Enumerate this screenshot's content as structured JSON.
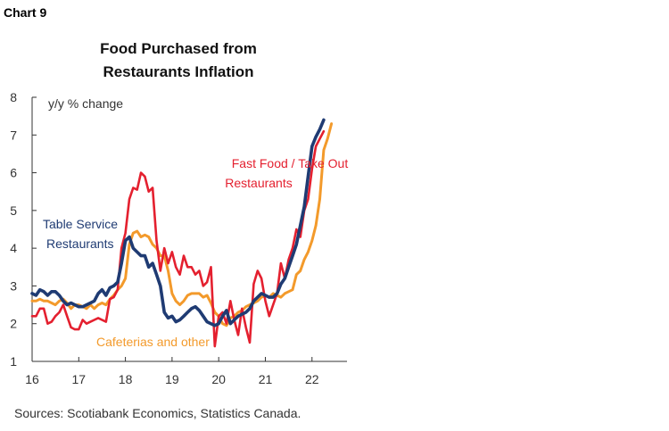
{
  "header": {
    "chart_number": "Chart 9"
  },
  "footer": {
    "source": "Sources: Scotiabank Economics, Statistics Canada."
  },
  "chart_data": {
    "type": "line",
    "title_lines": [
      "Food Purchased from",
      "Restaurants Inflation"
    ],
    "ylabel": "y/y % change",
    "ylim": [
      1,
      8
    ],
    "y_ticks": [
      "1",
      "2",
      "3",
      "4",
      "5",
      "6",
      "7",
      "8"
    ],
    "xlim": [
      2016,
      2022.75
    ],
    "x_ticks": [
      {
        "v": 2016,
        "label": "16"
      },
      {
        "v": 2017,
        "label": "17"
      },
      {
        "v": 2018,
        "label": "18"
      },
      {
        "v": 2019,
        "label": "19"
      },
      {
        "v": 2020,
        "label": "20"
      },
      {
        "v": 2021,
        "label": "21"
      },
      {
        "v": 2022,
        "label": "22"
      }
    ],
    "grid": false,
    "series": [
      {
        "name": "Cafeterias and other",
        "color": "#f39a2b",
        "x_start": 2016,
        "step_months": 1,
        "values": [
          2.6,
          2.6,
          2.65,
          2.6,
          2.6,
          2.55,
          2.5,
          2.6,
          2.65,
          2.55,
          2.4,
          2.5,
          2.5,
          2.45,
          2.4,
          2.5,
          2.4,
          2.5,
          2.55,
          2.5,
          2.65,
          2.75,
          2.9,
          3.0,
          3.2,
          4.1,
          4.4,
          4.45,
          4.3,
          4.35,
          4.3,
          4.1,
          4.0,
          3.8,
          3.8,
          3.4,
          2.8,
          2.6,
          2.5,
          2.6,
          2.75,
          2.8,
          2.8,
          2.8,
          2.7,
          2.75,
          2.55,
          2.3,
          2.2,
          2.0,
          1.95,
          2.15,
          2.2,
          2.3,
          2.35,
          2.45,
          2.5,
          2.55,
          2.6,
          2.7,
          2.75,
          2.7,
          2.8,
          2.75,
          2.7,
          2.8,
          2.85,
          2.9,
          3.3,
          3.4,
          3.7,
          3.9,
          4.2,
          4.6,
          5.3,
          6.6,
          6.9,
          7.3
        ],
        "label_lines": [
          "Cafeterias and other"
        ]
      },
      {
        "name": "Fast Food / Take Out Restaurants",
        "color": "#e4202f",
        "x_start": 2016,
        "step_months": 1,
        "values": [
          2.2,
          2.2,
          2.4,
          2.4,
          2.0,
          2.05,
          2.2,
          2.3,
          2.5,
          2.2,
          1.9,
          1.85,
          1.85,
          2.1,
          2.0,
          2.05,
          2.1,
          2.15,
          2.1,
          2.05,
          2.65,
          2.7,
          2.9,
          4.0,
          4.4,
          5.3,
          5.6,
          5.55,
          6.0,
          5.9,
          5.5,
          5.6,
          4.2,
          3.4,
          4.0,
          3.6,
          3.9,
          3.5,
          3.3,
          3.8,
          3.5,
          3.5,
          3.3,
          3.4,
          3.0,
          3.1,
          3.5,
          1.4,
          2.2,
          2.3,
          2.0,
          2.6,
          2.1,
          1.7,
          2.4,
          1.9,
          1.5,
          3.05,
          3.4,
          3.2,
          2.6,
          2.2,
          2.5,
          2.8,
          3.6,
          3.2,
          3.7,
          4.0,
          4.5,
          4.3,
          5.0,
          5.3,
          6.1,
          6.7,
          6.9,
          7.1
        ],
        "label_lines": [
          "Fast Food / Take Out",
          "Restaurants"
        ]
      },
      {
        "name": "Table Service Restaurants",
        "color": "#1f3b73",
        "x_start": 2016,
        "step_months": 1,
        "values": [
          2.8,
          2.75,
          2.9,
          2.85,
          2.75,
          2.85,
          2.85,
          2.75,
          2.6,
          2.5,
          2.55,
          2.5,
          2.45,
          2.45,
          2.5,
          2.55,
          2.6,
          2.8,
          2.9,
          2.75,
          2.95,
          3.0,
          3.1,
          3.6,
          4.2,
          4.3,
          4.0,
          3.9,
          3.8,
          3.8,
          3.5,
          3.6,
          3.3,
          3.0,
          2.3,
          2.15,
          2.2,
          2.05,
          2.1,
          2.2,
          2.3,
          2.4,
          2.45,
          2.35,
          2.2,
          2.05,
          2.0,
          1.95,
          2.0,
          2.2,
          2.35,
          2.0,
          2.1,
          2.2,
          2.25,
          2.3,
          2.4,
          2.6,
          2.7,
          2.8,
          2.75,
          2.7,
          2.7,
          2.8,
          3.05,
          3.2,
          3.5,
          3.8,
          4.1,
          4.6,
          5.1,
          5.9,
          6.7,
          6.95,
          7.15,
          7.4
        ],
        "label_lines": [
          "Table Service",
          "Restaurants"
        ]
      }
    ]
  }
}
